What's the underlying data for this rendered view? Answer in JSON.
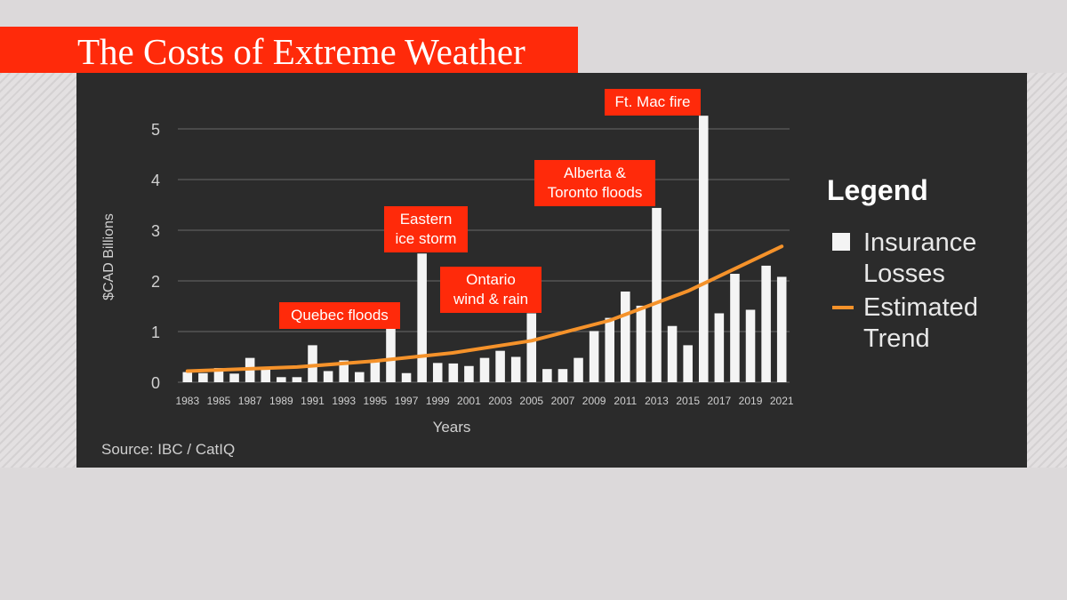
{
  "title": "The Costs of Extreme Weather",
  "source": "Source: IBC / CatIQ",
  "colors": {
    "title_bg": "#ff2a0a",
    "panel_bg": "#2b2b2b",
    "bar": "#f4f4f4",
    "trend": "#f5922a",
    "callout": "#ff2a0a",
    "page_bg": "#dcd9da"
  },
  "legend": {
    "title": "Legend",
    "items": [
      {
        "label_line1": "Insurance",
        "label_line2": "Losses",
        "marker": "square"
      },
      {
        "label_line1": "Estimated",
        "label_line2": "Trend",
        "marker": "line"
      }
    ]
  },
  "chart_data": {
    "type": "bar",
    "title": "The Costs of Extreme Weather",
    "xlabel": "Years",
    "ylabel": "$CAD Billions",
    "ylim": [
      0,
      5.3
    ],
    "yticks": [
      0,
      1,
      2,
      3,
      4,
      5
    ],
    "grid": true,
    "legend_position": "right",
    "categories": [
      1983,
      1984,
      1985,
      1986,
      1987,
      1988,
      1989,
      1990,
      1991,
      1992,
      1993,
      1994,
      1995,
      1996,
      1997,
      1998,
      1999,
      2000,
      2001,
      2002,
      2003,
      2004,
      2005,
      2006,
      2007,
      2008,
      2009,
      2010,
      2011,
      2012,
      2013,
      2014,
      2015,
      2016,
      2017,
      2018,
      2019,
      2020,
      2021
    ],
    "xtick_labels": [
      "1983",
      "1985",
      "1987",
      "1989",
      "1991",
      "1993",
      "1995",
      "1997",
      "1999",
      "2001",
      "2003",
      "2005",
      "2007",
      "2009",
      "2011",
      "2013",
      "2015",
      "2017",
      "2019",
      "2021"
    ],
    "series": [
      {
        "name": "Insurance Losses",
        "values": [
          0.2,
          0.18,
          0.28,
          0.17,
          0.48,
          0.28,
          0.1,
          0.1,
          0.73,
          0.22,
          0.43,
          0.2,
          0.42,
          1.06,
          0.18,
          2.54,
          0.38,
          0.37,
          0.32,
          0.48,
          0.62,
          0.5,
          1.36,
          0.26,
          0.26,
          0.48,
          1.01,
          1.27,
          1.79,
          1.51,
          3.44,
          1.11,
          0.73,
          5.26,
          1.36,
          2.14,
          1.43,
          2.3,
          2.08
        ]
      },
      {
        "name": "Estimated Trend",
        "type": "line",
        "x": [
          1983,
          1990,
          1995,
          2000,
          2005,
          2010,
          2015,
          2021
        ],
        "values": [
          0.22,
          0.3,
          0.42,
          0.58,
          0.82,
          1.22,
          1.8,
          2.68
        ]
      }
    ],
    "annotations": [
      {
        "year": 1993,
        "lines": [
          "Quebec floods"
        ]
      },
      {
        "year": 1998,
        "lines": [
          "Eastern",
          "ice storm"
        ]
      },
      {
        "year": 2002,
        "lines": [
          "Ontario",
          "wind & rain"
        ]
      },
      {
        "year": 2011,
        "lines": [
          "Alberta &",
          "Toronto floods"
        ]
      },
      {
        "year": 2013,
        "lines": [
          "Ft. Mac fire"
        ]
      }
    ]
  }
}
